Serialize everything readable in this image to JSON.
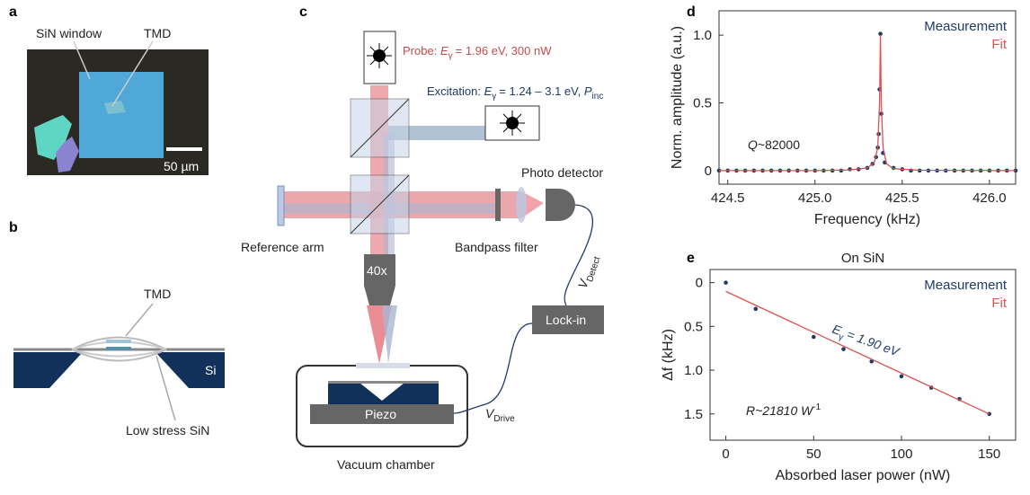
{
  "panel_labels": [
    "a",
    "b",
    "c",
    "d",
    "e"
  ],
  "panel_a": {
    "labels": [
      "SiN window",
      "TMD"
    ],
    "scale_bar": "50 µm"
  },
  "panel_b": {
    "labels": [
      "TMD",
      "Si",
      "Low stress SiN"
    ]
  },
  "panel_c": {
    "probe": {
      "label": "Probe:",
      "symbol": "E",
      "subscript": "γ",
      "value": "= 1.96 eV, 300 nW"
    },
    "excitation": {
      "label": "Excitation:",
      "symbol": "E",
      "subscript": "γ",
      "value": "= 1.24 – 3.1 eV,",
      "power_symbol": "P",
      "power_subscript": "inc"
    },
    "photo_detector": "Photo detector",
    "reference_arm": "Reference arm",
    "bandpass_filter": "Bandpass filter",
    "objective": "40x",
    "lock_in": "Lock-in",
    "piezo": "Piezo",
    "vacuum_chamber": "Vacuum chamber",
    "v_detect": {
      "symbol": "V",
      "subscript": "Detect"
    },
    "v_drive": {
      "symbol": "V",
      "subscript": "Drive"
    }
  },
  "chart_data": [
    {
      "type": "line",
      "x_label": "Frequency (kHz)",
      "y_label": "Norm. amplitude (a.u.)",
      "annotation": {
        "symbol": "Q",
        "text": "~82000"
      },
      "xlim": [
        424.45,
        426.15
      ],
      "xticks": [
        424.5,
        {
          "value": 425,
          "label": "425.0"
        },
        425.5,
        {
          "value": 426,
          "label": "426.0"
        }
      ],
      "ylim": [
        -0.1,
        1.18
      ],
      "yticks": [
        0,
        0.5,
        {
          "value": 1,
          "label": "1.0"
        }
      ],
      "legend": "top-right",
      "series": [
        {
          "name": "Measurement",
          "color": "#1f3a68",
          "mode": "markers",
          "x": [
            424.45,
            424.5,
            424.55,
            424.6,
            424.65,
            424.7,
            424.75,
            424.8,
            424.85,
            424.9,
            424.95,
            425.0,
            425.05,
            425.1,
            425.15,
            425.2,
            425.25,
            425.3,
            425.33,
            425.35,
            425.36,
            425.365,
            425.37,
            425.375,
            425.38,
            425.39,
            425.4,
            425.45,
            425.5,
            425.55,
            425.6,
            425.65,
            425.7,
            425.75,
            425.8,
            425.85,
            425.9,
            425.95,
            426.0,
            426.05,
            426.1,
            426.15
          ],
          "values": [
            0,
            0,
            0,
            0,
            0,
            0,
            0,
            0,
            0,
            0,
            0,
            0,
            0,
            0,
            0,
            0.01,
            0.01,
            0.02,
            0.05,
            0.1,
            0.17,
            0.27,
            0.6,
            1.01,
            0.42,
            0.13,
            0.06,
            0.02,
            0.01,
            0,
            0,
            0,
            0,
            0,
            0,
            0,
            0,
            0,
            0,
            0,
            0,
            0
          ]
        },
        {
          "name": "Fit",
          "color": "#d9534f",
          "mode": "line",
          "x": [
            424.45,
            425.0,
            425.2,
            425.3,
            425.34,
            425.36,
            425.37,
            425.375,
            425.38,
            425.39,
            425.41,
            425.45,
            425.6,
            426.15
          ],
          "values": [
            0,
            0,
            0.005,
            0.02,
            0.06,
            0.17,
            0.5,
            1.0,
            0.5,
            0.17,
            0.05,
            0.015,
            0.003,
            0
          ]
        }
      ]
    },
    {
      "type": "line",
      "title": "On SiN",
      "x_label": "Absorbed laser power (nW)",
      "y_label": "Δf (kHz)",
      "annotations": [
        {
          "symbol": "E",
          "subscript": "γ",
          "text": "= 1.90 eV"
        },
        {
          "symbol": "R",
          "text": "~21810 W",
          "superscript": "-1"
        }
      ],
      "xlim": [
        -9,
        165
      ],
      "xticks": [
        0,
        50,
        100,
        150
      ],
      "ylim": [
        -0.15,
        1.8
      ],
      "y_inverted": true,
      "yticks": [
        0,
        0.5,
        {
          "value": 1,
          "label": "1.0"
        },
        1.5
      ],
      "legend": "top-right",
      "series": [
        {
          "name": "Measurement",
          "color": "#1f3a68",
          "mode": "markers",
          "x": [
            0,
            17,
            50,
            67,
            83,
            100,
            117,
            133,
            150
          ],
          "values": [
            0,
            0.3,
            0.62,
            0.76,
            0.9,
            1.07,
            1.2,
            1.33,
            1.5
          ]
        },
        {
          "name": "Fit",
          "color": "#d9534f",
          "mode": "line",
          "x": [
            0,
            150
          ],
          "values": [
            0.1,
            1.5
          ]
        }
      ]
    }
  ]
}
